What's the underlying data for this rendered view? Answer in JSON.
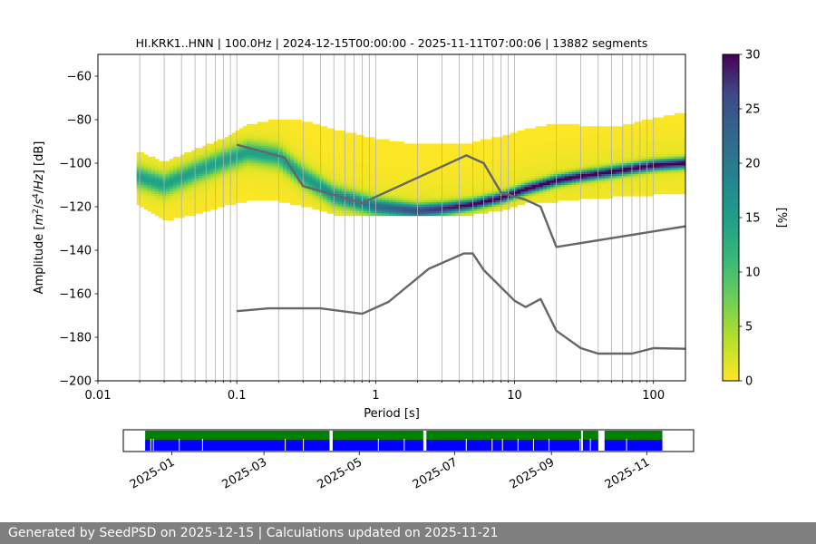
{
  "chart_data": {
    "type": "heatmap",
    "title": "HI.KRK1..HNN | 100.0Hz | 2024-12-15T00:00:00 - 2025-11-11T07:00:06 | 13882 segments",
    "xlabel": "Period [s]",
    "ylabel_parts": [
      "Amplitude [",
      "m",
      "2",
      "/",
      "s",
      "4",
      "/",
      "Hz",
      "] [dB]"
    ],
    "x_scale": "log",
    "xlim": [
      0.01,
      170
    ],
    "ylim": [
      -200,
      -50
    ],
    "x_ticks": [
      {
        "value": 0.01,
        "label": "0.01"
      },
      {
        "value": 0.1,
        "label": "0.1"
      },
      {
        "value": 1,
        "label": "1"
      },
      {
        "value": 10,
        "label": "10"
      },
      {
        "value": 100,
        "label": "100"
      }
    ],
    "y_ticks": [
      {
        "value": -60,
        "label": "−60"
      },
      {
        "value": -80,
        "label": "−80"
      },
      {
        "value": -100,
        "label": "−100"
      },
      {
        "value": -120,
        "label": "−120"
      },
      {
        "value": -140,
        "label": "−140"
      },
      {
        "value": -160,
        "label": "−160"
      },
      {
        "value": -180,
        "label": "−180"
      },
      {
        "value": -200,
        "label": "−200"
      }
    ],
    "grid": true,
    "colorbar": {
      "label": "[%]",
      "range": [
        0,
        30
      ],
      "ticks": [
        {
          "value": 0,
          "label": "0"
        },
        {
          "value": 5,
          "label": "5"
        },
        {
          "value": 10,
          "label": "10"
        },
        {
          "value": 15,
          "label": "15"
        },
        {
          "value": 20,
          "label": "20"
        },
        {
          "value": 25,
          "label": "25"
        },
        {
          "value": 30,
          "label": "30"
        }
      ],
      "colormap": "viridis_r"
    },
    "density_envelope": {
      "period": [
        0.019,
        0.03,
        0.05,
        0.08,
        0.12,
        0.2,
        0.3,
        0.5,
        1,
        2,
        3,
        5,
        8,
        12,
        20,
        30,
        50,
        100,
        170
      ],
      "upper": [
        -94,
        -99,
        -93,
        -88,
        -82,
        -79,
        -80,
        -84,
        -88,
        -91,
        -91,
        -90,
        -87,
        -84,
        -81,
        -82,
        -83,
        -79,
        -76
      ],
      "lower": [
        -118,
        -126,
        -123,
        -119,
        -117,
        -117,
        -119,
        -123,
        -124,
        -124,
        -124,
        -123,
        -121,
        -118,
        -117,
        -116,
        -115,
        -114,
        -113
      ],
      "mode": [
        -106,
        -110,
        -104,
        -99,
        -95,
        -97,
        -106,
        -115,
        -120,
        -122,
        -121,
        -119,
        -116,
        -112,
        -108,
        -106,
        -104,
        -101,
        -100
      ]
    },
    "series": [
      {
        "x": [
          0.1,
          0.22,
          0.3,
          0.8,
          4.5,
          6,
          8,
          12,
          15.4,
          20,
          170
        ],
        "y": [
          -91.5,
          -97.4,
          -110.5,
          -118.3,
          -96.4,
          -100,
          -113.5,
          -116.8,
          -120,
          -138.5,
          -129
        ]
      },
      {
        "x": [
          0.1,
          0.17,
          0.4,
          0.8,
          1.24,
          2.4,
          4.3,
          5,
          6,
          10,
          12,
          15.4,
          20,
          30,
          40,
          70,
          100,
          170
        ],
        "y": [
          -168,
          -166.7,
          -166.7,
          -169.2,
          -163.7,
          -148.6,
          -141.5,
          -141.5,
          -149.1,
          -163.2,
          -166.1,
          -162.4,
          -177,
          -185,
          -187.5,
          -187.5,
          -185,
          -185.3
        ]
      }
    ],
    "timeline": {
      "x_ticks": [
        "2025-01",
        "2025-03",
        "2025-05",
        "2025-07",
        "2025-09",
        "2025-11"
      ],
      "range": [
        "2024-12-01",
        "2025-12-01"
      ],
      "coverage_colors": [
        "#008000",
        "#0000ff"
      ],
      "gaps": [
        [
          "2025-04-12",
          "2025-04-14"
        ],
        [
          "2025-06-11",
          "2025-06-13"
        ],
        [
          "2025-09-20",
          "2025-09-21"
        ],
        [
          "2025-10-01",
          "2025-10-05"
        ]
      ],
      "end": "2025-11-11"
    }
  },
  "footer": {
    "text": "Generated by SeedPSD on 2025-12-15 | Calculations updated on 2025-11-21"
  },
  "colors": {
    "nlnm_line": "#666666",
    "grid": "#b0b0b0",
    "footer_bg": "#7f7f7f"
  }
}
